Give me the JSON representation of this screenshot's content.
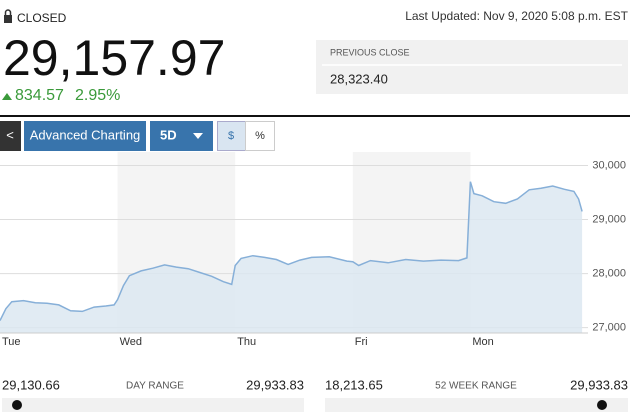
{
  "header": {
    "status": "CLOSED",
    "last_updated": "Last Updated: Nov 9, 2020 5:08 p.m. EST",
    "price": "29,157.97",
    "change": "834.57",
    "change_percent": "2.95%"
  },
  "previous_close": {
    "label": "PREVIOUS CLOSE",
    "value": "28,323.40"
  },
  "toolbar": {
    "back": "<",
    "advanced": "Advanced Charting",
    "range": "5D",
    "dollar": "$",
    "percent": "%"
  },
  "chart_data": {
    "type": "line",
    "color": "#86afd8",
    "area_color": "#dce7f1",
    "x": [
      0,
      0.05,
      0.1,
      0.2,
      0.3,
      0.4,
      0.5,
      0.6,
      0.7,
      0.8,
      0.9,
      0.97,
      1.0,
      1.05,
      1.1,
      1.2,
      1.3,
      1.4,
      1.5,
      1.6,
      1.7,
      1.8,
      1.9,
      1.97,
      2.0,
      2.05,
      2.15,
      2.25,
      2.35,
      2.45,
      2.55,
      2.65,
      2.8,
      2.95,
      3.0,
      3.05,
      3.15,
      3.3,
      3.45,
      3.6,
      3.75,
      3.9,
      3.97,
      4.0,
      4.03,
      4.1,
      4.2,
      4.3,
      4.4,
      4.5,
      4.6,
      4.7,
      4.8,
      4.88,
      4.92,
      4.95
    ],
    "values": [
      27130,
      27350,
      27480,
      27500,
      27460,
      27450,
      27420,
      27310,
      27300,
      27380,
      27400,
      27420,
      27520,
      27780,
      27960,
      28050,
      28100,
      28160,
      28120,
      28090,
      28020,
      27950,
      27850,
      27800,
      28150,
      28280,
      28330,
      28300,
      28260,
      28170,
      28250,
      28300,
      28310,
      28230,
      28220,
      28150,
      28240,
      28200,
      28260,
      28230,
      28250,
      28240,
      28290,
      29700,
      29480,
      29440,
      29330,
      29300,
      29380,
      29550,
      29580,
      29620,
      29560,
      29520,
      29380,
      29150
    ],
    "xlim": [
      0,
      5
    ],
    "xticks": [
      {
        "value": 0,
        "label": "Tue"
      },
      {
        "value": 1,
        "label": "Wed"
      },
      {
        "value": 2,
        "label": "Thu"
      },
      {
        "value": 3,
        "label": "Fri"
      },
      {
        "value": 4,
        "label": "Mon"
      }
    ],
    "ylim": [
      26900,
      30250
    ],
    "yticks": [
      {
        "value": 27000,
        "label": "27,000"
      },
      {
        "value": 28000,
        "label": "28,000"
      },
      {
        "value": 29000,
        "label": "29,000"
      },
      {
        "value": 30000,
        "label": "30,000"
      }
    ],
    "grid": true
  },
  "day_range": {
    "low": "29,130.66",
    "label": "DAY RANGE",
    "high": "29,933.83"
  },
  "week52_range": {
    "low": "18,213.65",
    "label": "52 WEEK RANGE",
    "high": "29,933.83"
  }
}
